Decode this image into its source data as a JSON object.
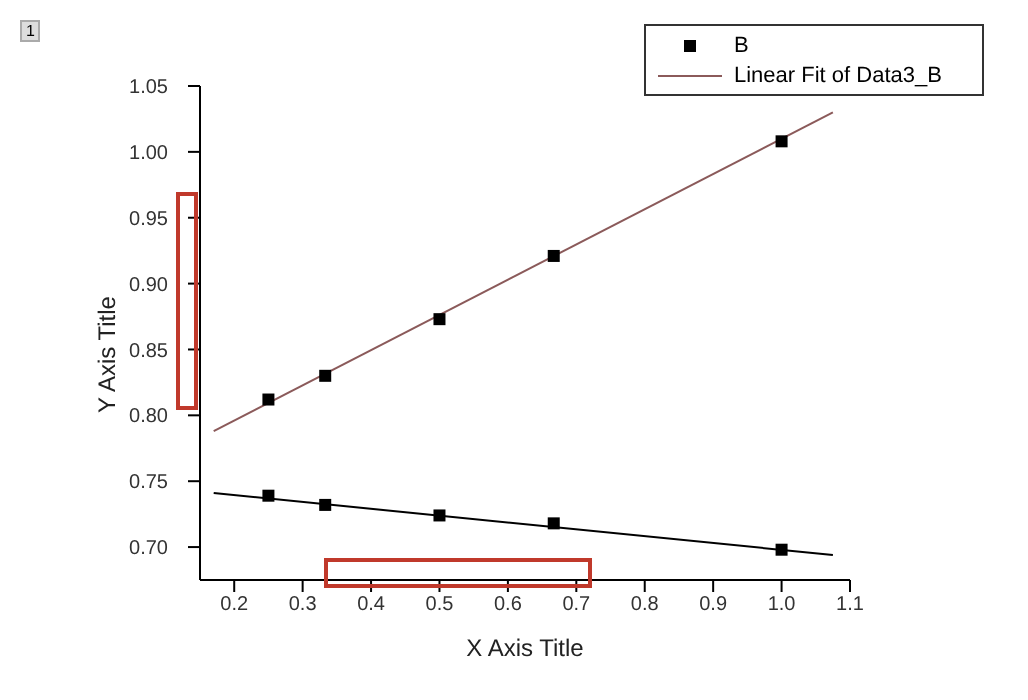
{
  "chart_data": {
    "type": "scatter",
    "xlabel": "X Axis Title",
    "ylabel": "Y Axis Title",
    "annotations": [
      "1"
    ],
    "xlim": [
      0.15,
      1.1
    ],
    "xticks": [
      0.2,
      0.3,
      0.4,
      0.5,
      0.6,
      0.7,
      0.8,
      0.9,
      {
        "value": 1,
        "label": "1.0"
      },
      1.1
    ],
    "ylim": [
      0.675,
      1.05
    ],
    "yticks": [
      {
        "value": 0.7,
        "label": "0.70"
      },
      {
        "value": 0.75,
        "label": "0.75"
      },
      {
        "value": 0.8,
        "label": "0.80"
      },
      {
        "value": 0.85,
        "label": "0.85"
      },
      {
        "value": 0.9,
        "label": "0.90"
      },
      {
        "value": 0.95,
        "label": "0.95"
      },
      {
        "value": 1,
        "label": "1.00"
      },
      {
        "value": 1.05,
        "label": "1.05"
      }
    ],
    "grid": false,
    "legend": "top right",
    "series": [
      {
        "name": "B",
        "marker": "square",
        "color": "#000000",
        "x": [
          0.25,
          0.333,
          0.5,
          0.667,
          1.0
        ],
        "values": [
          0.812,
          0.83,
          0.873,
          0.921,
          1.008
        ]
      },
      {
        "name": "Linear Fit of Data3_B",
        "type": "line",
        "color": "#8b5a5a",
        "x": [
          0.17,
          1.075
        ],
        "values": [
          0.788,
          1.03
        ],
        "marker": "none"
      },
      {
        "marker": "square",
        "color": "#000000",
        "x": [
          0.25,
          0.333,
          0.5,
          0.667,
          1.0
        ],
        "values": [
          0.739,
          0.732,
          0.724,
          0.718,
          0.698
        ]
      },
      {
        "type": "line",
        "color": "#000000",
        "x": [
          0.17,
          1.075
        ],
        "values": [
          0.741,
          0.694
        ],
        "marker": "none"
      }
    ]
  }
}
